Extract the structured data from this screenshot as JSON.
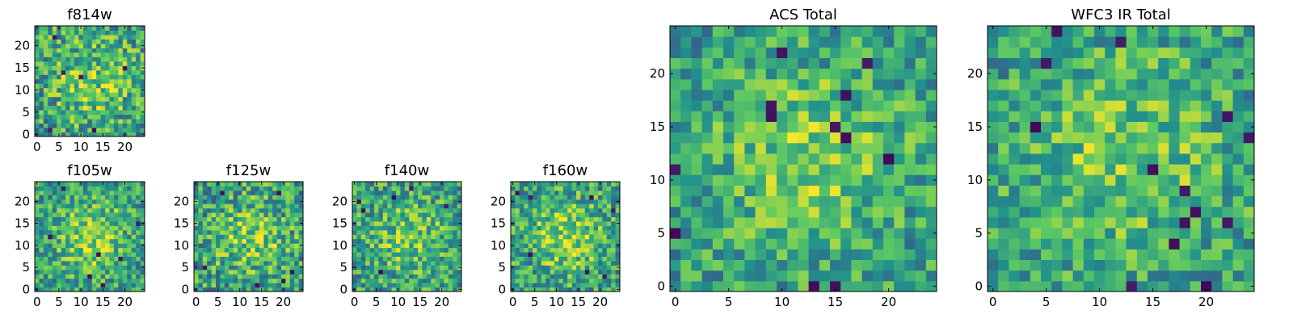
{
  "figure": {
    "colormap": "viridis",
    "colormap_stops": [
      "#440154",
      "#3b528b",
      "#21918c",
      "#5ec962",
      "#fde725"
    ]
  },
  "chart_data": [
    {
      "type": "heatmap",
      "title": "f814w",
      "grid_size": 25,
      "xlim": [
        -0.5,
        24.5
      ],
      "ylim": [
        -0.5,
        24.5
      ],
      "xticks": [
        0,
        5,
        10,
        15,
        20
      ],
      "yticks": [
        0,
        5,
        10,
        15,
        20
      ],
      "pattern": {
        "seed": 11,
        "noise": 0.3,
        "center_boost": 0.22,
        "sigma": 7,
        "dark_pixels": [
          [
            4,
            22
          ],
          [
            6,
            14
          ],
          [
            10,
            13
          ],
          [
            20,
            15
          ],
          [
            3,
            1
          ],
          [
            13,
            1
          ]
        ]
      }
    },
    {
      "type": "heatmap",
      "title": "f105w",
      "grid_size": 25,
      "xlim": [
        -0.5,
        24.5
      ],
      "ylim": [
        -0.5,
        24.5
      ],
      "xticks": [
        0,
        5,
        10,
        15,
        20
      ],
      "yticks": [
        0,
        5,
        10,
        15,
        20
      ],
      "pattern": {
        "seed": 23,
        "noise": 0.26,
        "center_boost": 0.28,
        "sigma": 6,
        "dark_pixels": [
          [
            6,
            23
          ],
          [
            3,
            12
          ],
          [
            14,
            8
          ],
          [
            19,
            7
          ],
          [
            23,
            15
          ],
          [
            15,
            1
          ],
          [
            12,
            3
          ]
        ]
      }
    },
    {
      "type": "heatmap",
      "title": "f125w",
      "grid_size": 25,
      "xlim": [
        -0.5,
        24.5
      ],
      "ylim": [
        -0.5,
        24.5
      ],
      "xticks": [
        0,
        5,
        10,
        15,
        20
      ],
      "yticks": [
        0,
        5,
        10,
        15,
        20
      ],
      "pattern": {
        "seed": 37,
        "noise": 0.3,
        "center_boost": 0.24,
        "sigma": 6,
        "dark_pixels": [
          [
            6,
            22
          ],
          [
            19,
            22
          ],
          [
            22,
            4
          ],
          [
            20,
            2
          ],
          [
            14,
            1
          ],
          [
            2,
            5
          ]
        ]
      }
    },
    {
      "type": "heatmap",
      "title": "f140w",
      "grid_size": 25,
      "xlim": [
        -0.5,
        24.5
      ],
      "ylim": [
        -0.5,
        24.5
      ],
      "xticks": [
        0,
        5,
        10,
        15,
        20
      ],
      "yticks": [
        0,
        5,
        10,
        15,
        20
      ],
      "pattern": {
        "seed": 41,
        "noise": 0.28,
        "center_boost": 0.22,
        "sigma": 6,
        "dark_pixels": [
          [
            2,
            18
          ],
          [
            1,
            20
          ],
          [
            9,
            21
          ],
          [
            13,
            23
          ],
          [
            21,
            19
          ],
          [
            6,
            4
          ]
        ]
      }
    },
    {
      "type": "heatmap",
      "title": "f160w",
      "grid_size": 25,
      "xlim": [
        -0.5,
        24.5
      ],
      "ylim": [
        -0.5,
        24.5
      ],
      "xticks": [
        0,
        5,
        10,
        15,
        20
      ],
      "yticks": [
        0,
        5,
        10,
        15,
        20
      ],
      "pattern": {
        "seed": 59,
        "noise": 0.28,
        "center_boost": 0.3,
        "sigma": 6,
        "dark_pixels": [
          [
            1,
            22
          ],
          [
            4,
            21
          ],
          [
            18,
            21
          ],
          [
            23,
            18
          ],
          [
            4,
            8
          ],
          [
            17,
            4
          ],
          [
            21,
            3
          ]
        ]
      }
    },
    {
      "type": "heatmap",
      "title": "ACS Total",
      "grid_size": 25,
      "xlim": [
        -0.5,
        24.5
      ],
      "ylim": [
        -0.5,
        24.5
      ],
      "xticks": [
        0,
        5,
        10,
        15,
        20
      ],
      "yticks": [
        0,
        5,
        10,
        15,
        20
      ],
      "pattern": {
        "seed": 71,
        "noise": 0.24,
        "center_boost": 0.26,
        "sigma": 6,
        "dark_pixels": [
          [
            10,
            22
          ],
          [
            18,
            21
          ],
          [
            9,
            17
          ],
          [
            9,
            16
          ],
          [
            16,
            18
          ],
          [
            15,
            15
          ],
          [
            16,
            14
          ],
          [
            20,
            12
          ],
          [
            0,
            11
          ],
          [
            13,
            0
          ],
          [
            15,
            0
          ],
          [
            0,
            5
          ]
        ]
      }
    },
    {
      "type": "heatmap",
      "title": "WFC3 IR Total",
      "grid_size": 25,
      "xlim": [
        -0.5,
        24.5
      ],
      "ylim": [
        -0.5,
        24.5
      ],
      "xticks": [
        0,
        5,
        10,
        15,
        20
      ],
      "yticks": [
        0,
        5,
        10,
        15,
        20
      ],
      "pattern": {
        "seed": 83,
        "noise": 0.24,
        "center_boost": 0.22,
        "sigma": 7,
        "dark_pixels": [
          [
            6,
            24
          ],
          [
            12,
            23
          ],
          [
            5,
            21
          ],
          [
            22,
            16
          ],
          [
            4,
            15
          ],
          [
            24,
            14
          ],
          [
            15,
            11
          ],
          [
            18,
            9
          ],
          [
            19,
            7
          ],
          [
            18,
            6
          ],
          [
            22,
            6
          ],
          [
            17,
            4
          ],
          [
            13,
            0
          ],
          [
            20,
            0
          ]
        ]
      }
    }
  ]
}
